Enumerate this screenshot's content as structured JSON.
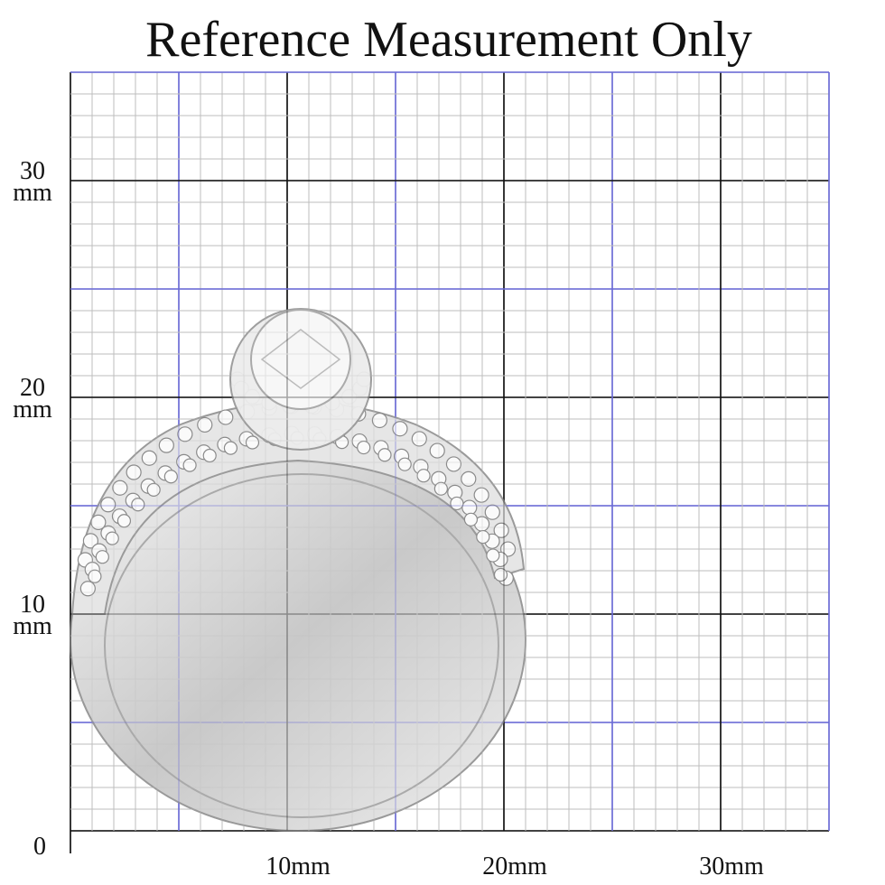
{
  "header": {
    "title": "Reference Measurement Only"
  },
  "y_labels": [
    {
      "number": "30",
      "unit": "mm"
    },
    {
      "number": "20",
      "unit": "mm"
    },
    {
      "number": "10",
      "unit": "mm"
    }
  ],
  "origin_label": "0",
  "x_labels": [
    "10mm",
    "20mm",
    "30mm"
  ]
}
